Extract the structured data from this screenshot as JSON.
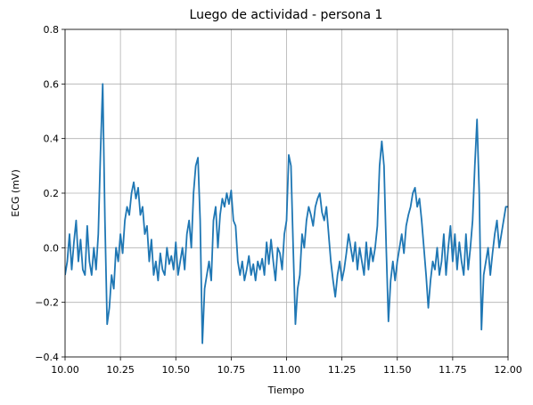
{
  "chart_data": {
    "type": "line",
    "title": "Luego de actividad - persona 1",
    "xlabel": "Tiempo",
    "ylabel": "ECG (mV)",
    "x": [
      10,
      10.01,
      10.02,
      10.03,
      10.04,
      10.05,
      10.06,
      10.07,
      10.08,
      10.09,
      10.1,
      10.11,
      10.12,
      10.13,
      10.14,
      10.15,
      10.16,
      10.17,
      10.18,
      10.19,
      10.2,
      10.21,
      10.22,
      10.23,
      10.24,
      10.25,
      10.26,
      10.27,
      10.28,
      10.29,
      10.3,
      10.31,
      10.32,
      10.33,
      10.34,
      10.35,
      10.36,
      10.37,
      10.38,
      10.39,
      10.4,
      10.41,
      10.42,
      10.43,
      10.44,
      10.45,
      10.46,
      10.47,
      10.48,
      10.49,
      10.5,
      10.51,
      10.52,
      10.53,
      10.54,
      10.55,
      10.56,
      10.57,
      10.58,
      10.59,
      10.6,
      10.61,
      10.62,
      10.63,
      10.64,
      10.65,
      10.66,
      10.67,
      10.68,
      10.69,
      10.7,
      10.71,
      10.72,
      10.73,
      10.74,
      10.75,
      10.76,
      10.77,
      10.78,
      10.79,
      10.8,
      10.81,
      10.82,
      10.83,
      10.84,
      10.85,
      10.86,
      10.87,
      10.88,
      10.89,
      10.9,
      10.91,
      10.92,
      10.93,
      10.94,
      10.95,
      10.96,
      10.97,
      10.98,
      10.99,
      11,
      11.01,
      11.02,
      11.03,
      11.04,
      11.05,
      11.06,
      11.07,
      11.08,
      11.09,
      11.1,
      11.11,
      11.12,
      11.13,
      11.14,
      11.15,
      11.16,
      11.17,
      11.18,
      11.19,
      11.2,
      11.21,
      11.22,
      11.23,
      11.24,
      11.25,
      11.26,
      11.27,
      11.28,
      11.29,
      11.3,
      11.31,
      11.32,
      11.33,
      11.34,
      11.35,
      11.36,
      11.37,
      11.38,
      11.39,
      11.4,
      11.41,
      11.42,
      11.43,
      11.44,
      11.45,
      11.46,
      11.47,
      11.48,
      11.49,
      11.5,
      11.51,
      11.52,
      11.53,
      11.54,
      11.55,
      11.56,
      11.57,
      11.58,
      11.59,
      11.6,
      11.61,
      11.62,
      11.63,
      11.64,
      11.65,
      11.66,
      11.67,
      11.68,
      11.69,
      11.7,
      11.71,
      11.72,
      11.73,
      11.74,
      11.75,
      11.76,
      11.77,
      11.78,
      11.79,
      11.8,
      11.81,
      11.82,
      11.83,
      11.84,
      11.85,
      11.86,
      11.87,
      11.88,
      11.89,
      11.9,
      11.91,
      11.92,
      11.93,
      11.94,
      11.95,
      11.96,
      11.97,
      11.98,
      11.99,
      12
    ],
    "series": [
      {
        "color": "#1f77b4",
        "values": [
          -0.1,
          -0.05,
          0.05,
          -0.08,
          0.02,
          0.1,
          -0.05,
          0.03,
          -0.08,
          -0.1,
          0.08,
          -0.05,
          -0.1,
          0.0,
          -0.08,
          0.05,
          0.35,
          0.6,
          0.1,
          -0.28,
          -0.22,
          -0.1,
          -0.15,
          0.0,
          -0.05,
          0.05,
          -0.02,
          0.1,
          0.15,
          0.12,
          0.2,
          0.24,
          0.18,
          0.22,
          0.12,
          0.15,
          0.05,
          0.08,
          -0.05,
          0.03,
          -0.1,
          -0.05,
          -0.12,
          -0.02,
          -0.08,
          -0.1,
          0.0,
          -0.06,
          -0.03,
          -0.08,
          0.02,
          -0.1,
          -0.05,
          0.0,
          -0.08,
          0.05,
          0.1,
          0.0,
          0.2,
          0.3,
          0.33,
          0.1,
          -0.35,
          -0.15,
          -0.1,
          -0.05,
          -0.12,
          0.1,
          0.15,
          0.0,
          0.12,
          0.18,
          0.15,
          0.2,
          0.16,
          0.21,
          0.1,
          0.08,
          -0.05,
          -0.1,
          -0.05,
          -0.12,
          -0.08,
          -0.03,
          -0.1,
          -0.06,
          -0.12,
          -0.05,
          -0.08,
          -0.04,
          -0.1,
          0.02,
          -0.06,
          0.03,
          -0.05,
          -0.12,
          0.0,
          -0.02,
          -0.08,
          0.05,
          0.1,
          0.34,
          0.3,
          0.0,
          -0.28,
          -0.15,
          -0.1,
          0.05,
          0.0,
          0.1,
          0.15,
          0.12,
          0.08,
          0.15,
          0.18,
          0.2,
          0.13,
          0.1,
          0.15,
          0.05,
          -0.05,
          -0.12,
          -0.18,
          -0.1,
          -0.05,
          -0.12,
          -0.08,
          -0.02,
          0.05,
          0.0,
          -0.05,
          0.02,
          -0.08,
          0.0,
          -0.05,
          -0.1,
          0.02,
          -0.08,
          0.0,
          -0.05,
          0.0,
          0.08,
          0.3,
          0.39,
          0.3,
          0.0,
          -0.27,
          -0.12,
          -0.05,
          -0.12,
          -0.05,
          0.0,
          0.05,
          -0.02,
          0.08,
          0.12,
          0.15,
          0.2,
          0.22,
          0.15,
          0.18,
          0.1,
          0.0,
          -0.1,
          -0.22,
          -0.12,
          -0.05,
          -0.08,
          0.0,
          -0.1,
          -0.05,
          0.05,
          -0.1,
          0.0,
          0.08,
          -0.05,
          0.05,
          -0.08,
          0.02,
          -0.05,
          -0.1,
          0.05,
          -0.08,
          0.0,
          0.1,
          0.3,
          0.47,
          0.2,
          -0.3,
          -0.1,
          -0.05,
          0.0,
          -0.1,
          -0.02,
          0.05,
          0.1,
          0.0,
          0.05,
          0.1,
          0.15,
          0.15
        ]
      }
    ],
    "xlim": [
      10,
      12
    ],
    "xticks": [
      {
        "value": 10,
        "label": "10.00"
      },
      {
        "value": 10.25,
        "label": "10.25"
      },
      {
        "value": 10.5,
        "label": "10.50"
      },
      {
        "value": 10.75,
        "label": "10.75"
      },
      {
        "value": 11,
        "label": "11.00"
      },
      {
        "value": 11.25,
        "label": "11.25"
      },
      {
        "value": 11.5,
        "label": "11.50"
      },
      {
        "value": 11.75,
        "label": "11.75"
      },
      {
        "value": 12,
        "label": "12.00"
      }
    ],
    "ylim": [
      -0.4,
      0.8
    ],
    "yticks": [
      {
        "value": -0.4,
        "label": "−0.4"
      },
      {
        "value": -0.2,
        "label": "−0.2"
      },
      {
        "value": 0,
        "label": "0.0"
      },
      0.2,
      0.4,
      0.6,
      0.8
    ],
    "grid": true
  }
}
